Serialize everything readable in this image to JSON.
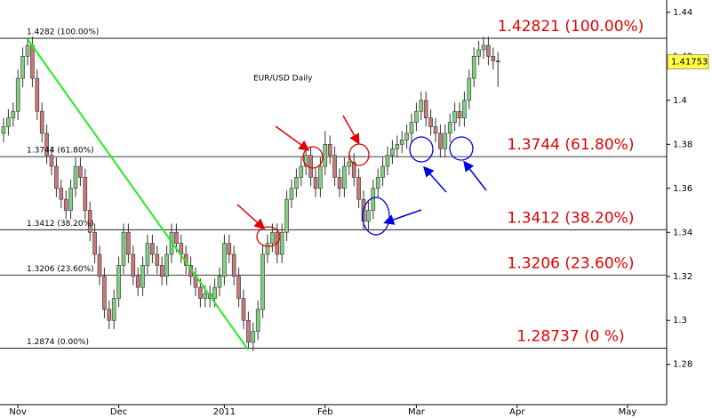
{
  "chart_data": {
    "type": "candlestick",
    "title": "EUR/USD Daily",
    "up_color": "#80d080",
    "down_color": "#c87878",
    "categories": [
      null,
      null,
      null,
      "Nov",
      null,
      null,
      null,
      null,
      null,
      null,
      null,
      null,
      null,
      null,
      null,
      null,
      null,
      null,
      null,
      null,
      null,
      null,
      null,
      null,
      "Dec",
      null,
      null,
      null,
      null,
      null,
      null,
      null,
      null,
      null,
      null,
      null,
      null,
      null,
      null,
      null,
      null,
      null,
      null,
      null,
      null,
      null,
      "2011",
      null,
      null,
      null,
      null,
      null,
      null,
      null,
      null,
      null,
      null,
      null,
      null,
      null,
      null,
      null,
      null,
      null,
      null,
      null,
      null,
      "Feb",
      null,
      null,
      null,
      null,
      null,
      null,
      null,
      null,
      null,
      null,
      null,
      null,
      null,
      null,
      null,
      null,
      null,
      null,
      "Mar",
      null,
      null,
      null,
      null,
      null,
      null,
      null,
      null,
      null,
      null,
      null,
      null,
      null,
      null,
      null,
      null,
      null,
      null,
      null,
      null,
      "Apr",
      null,
      null,
      null,
      null,
      null,
      null,
      null,
      null,
      null,
      null,
      null,
      null,
      null,
      null,
      null,
      null,
      null,
      null,
      null,
      null,
      null,
      null,
      "May"
    ],
    "candles": [
      [
        1.385,
        1.392,
        1.381,
        1.388
      ],
      [
        1.388,
        1.396,
        1.384,
        1.392
      ],
      [
        1.392,
        1.399,
        1.388,
        1.395
      ],
      [
        1.395,
        1.414,
        1.391,
        1.41
      ],
      [
        1.41,
        1.424,
        1.406,
        1.42
      ],
      [
        1.42,
        1.4282,
        1.416,
        1.425
      ],
      [
        1.425,
        1.429,
        1.406,
        1.41
      ],
      [
        1.41,
        1.414,
        1.391,
        1.395
      ],
      [
        1.395,
        1.399,
        1.381,
        1.385
      ],
      [
        1.385,
        1.389,
        1.371,
        1.375
      ],
      [
        1.375,
        1.379,
        1.366,
        1.37
      ],
      [
        1.37,
        1.374,
        1.356,
        1.36
      ],
      [
        1.36,
        1.364,
        1.351,
        1.355
      ],
      [
        1.355,
        1.359,
        1.346,
        1.35
      ],
      [
        1.35,
        1.364,
        1.346,
        1.36
      ],
      [
        1.36,
        1.374,
        1.356,
        1.37
      ],
      [
        1.37,
        1.374,
        1.361,
        1.365
      ],
      [
        1.365,
        1.369,
        1.346,
        1.35
      ],
      [
        1.35,
        1.354,
        1.336,
        1.34
      ],
      [
        1.34,
        1.344,
        1.326,
        1.33
      ],
      [
        1.33,
        1.334,
        1.316,
        1.32
      ],
      [
        1.32,
        1.324,
        1.301,
        1.305
      ],
      [
        1.305,
        1.309,
        1.296,
        1.3
      ],
      [
        1.3,
        1.314,
        1.296,
        1.31
      ],
      [
        1.31,
        1.329,
        1.306,
        1.325
      ],
      [
        1.325,
        1.344,
        1.321,
        1.34
      ],
      [
        1.34,
        1.344,
        1.326,
        1.33
      ],
      [
        1.33,
        1.334,
        1.316,
        1.32
      ],
      [
        1.32,
        1.324,
        1.311,
        1.315
      ],
      [
        1.315,
        1.329,
        1.311,
        1.325
      ],
      [
        1.325,
        1.339,
        1.321,
        1.335
      ],
      [
        1.335,
        1.339,
        1.326,
        1.33
      ],
      [
        1.33,
        1.334,
        1.321,
        1.325
      ],
      [
        1.325,
        1.329,
        1.316,
        1.32
      ],
      [
        1.32,
        1.334,
        1.316,
        1.33
      ],
      [
        1.33,
        1.344,
        1.326,
        1.34
      ],
      [
        1.34,
        1.344,
        1.331,
        1.335
      ],
      [
        1.335,
        1.339,
        1.326,
        1.33
      ],
      [
        1.33,
        1.334,
        1.321,
        1.325
      ],
      [
        1.325,
        1.329,
        1.316,
        1.32
      ],
      [
        1.32,
        1.324,
        1.311,
        1.315
      ],
      [
        1.315,
        1.319,
        1.306,
        1.31
      ],
      [
        1.31,
        1.316,
        1.306,
        1.312
      ],
      [
        1.312,
        1.316,
        1.306,
        1.31
      ],
      [
        1.31,
        1.319,
        1.306,
        1.315
      ],
      [
        1.315,
        1.324,
        1.311,
        1.32
      ],
      [
        1.32,
        1.339,
        1.316,
        1.335
      ],
      [
        1.335,
        1.339,
        1.326,
        1.33
      ],
      [
        1.33,
        1.334,
        1.316,
        1.32
      ],
      [
        1.32,
        1.324,
        1.306,
        1.31
      ],
      [
        1.31,
        1.314,
        1.296,
        1.3
      ],
      [
        1.3,
        1.304,
        1.2874,
        1.29
      ],
      [
        1.29,
        1.299,
        1.286,
        1.295
      ],
      [
        1.295,
        1.309,
        1.291,
        1.305
      ],
      [
        1.305,
        1.334,
        1.301,
        1.33
      ],
      [
        1.33,
        1.339,
        1.326,
        1.335
      ],
      [
        1.335,
        1.344,
        1.331,
        1.34
      ],
      [
        1.34,
        1.344,
        1.326,
        1.33
      ],
      [
        1.33,
        1.344,
        1.326,
        1.34
      ],
      [
        1.34,
        1.359,
        1.336,
        1.355
      ],
      [
        1.355,
        1.364,
        1.351,
        1.36
      ],
      [
        1.36,
        1.369,
        1.356,
        1.365
      ],
      [
        1.365,
        1.374,
        1.361,
        1.37
      ],
      [
        1.37,
        1.379,
        1.366,
        1.375
      ],
      [
        1.375,
        1.379,
        1.361,
        1.365
      ],
      [
        1.365,
        1.369,
        1.356,
        1.36
      ],
      [
        1.36,
        1.374,
        1.356,
        1.37
      ],
      [
        1.37,
        1.386,
        1.366,
        1.38
      ],
      [
        1.38,
        1.384,
        1.371,
        1.375
      ],
      [
        1.375,
        1.379,
        1.361,
        1.365
      ],
      [
        1.365,
        1.369,
        1.356,
        1.36
      ],
      [
        1.36,
        1.374,
        1.356,
        1.37
      ],
      [
        1.37,
        1.376,
        1.366,
        1.372
      ],
      [
        1.372,
        1.376,
        1.361,
        1.365
      ],
      [
        1.365,
        1.369,
        1.351,
        1.355
      ],
      [
        1.355,
        1.359,
        1.341,
        1.345
      ],
      [
        1.345,
        1.354,
        1.341,
        1.35
      ],
      [
        1.35,
        1.364,
        1.346,
        1.36
      ],
      [
        1.36,
        1.369,
        1.356,
        1.365
      ],
      [
        1.365,
        1.374,
        1.361,
        1.37
      ],
      [
        1.37,
        1.379,
        1.366,
        1.375
      ],
      [
        1.375,
        1.382,
        1.371,
        1.378
      ],
      [
        1.378,
        1.384,
        1.374,
        1.38
      ],
      [
        1.38,
        1.386,
        1.376,
        1.382
      ],
      [
        1.382,
        1.389,
        1.378,
        1.385
      ],
      [
        1.385,
        1.394,
        1.381,
        1.39
      ],
      [
        1.39,
        1.399,
        1.386,
        1.395
      ],
      [
        1.395,
        1.404,
        1.391,
        1.4
      ],
      [
        1.4,
        1.404,
        1.388,
        1.392
      ],
      [
        1.392,
        1.396,
        1.384,
        1.388
      ],
      [
        1.388,
        1.392,
        1.381,
        1.385
      ],
      [
        1.385,
        1.389,
        1.374,
        1.378
      ],
      [
        1.378,
        1.389,
        1.374,
        1.385
      ],
      [
        1.385,
        1.394,
        1.381,
        1.39
      ],
      [
        1.39,
        1.399,
        1.386,
        1.395
      ],
      [
        1.395,
        1.399,
        1.388,
        1.392
      ],
      [
        1.392,
        1.404,
        1.388,
        1.4
      ],
      [
        1.4,
        1.414,
        1.396,
        1.41
      ],
      [
        1.41,
        1.424,
        1.406,
        1.42
      ],
      [
        1.42,
        1.427,
        1.416,
        1.423
      ],
      [
        1.423,
        1.429,
        1.419,
        1.425
      ],
      [
        1.425,
        1.429,
        1.416,
        1.42
      ],
      [
        1.42,
        1.424,
        1.414,
        1.418
      ],
      [
        1.418,
        1.422,
        1.406,
        1.41753
      ],
      null,
      null,
      null,
      null,
      null,
      null,
      null,
      null,
      null,
      null,
      null,
      null,
      null,
      null,
      null,
      null,
      null,
      null,
      null,
      null,
      null,
      null,
      null,
      null,
      null,
      null,
      null
    ],
    "ylim": [
      1.2617,
      1.4456
    ],
    "yticks": [
      1.28,
      1.3,
      1.32,
      1.34,
      1.36,
      1.38,
      1.4,
      1.42,
      1.44
    ],
    "fib_levels": [
      {
        "value": 1.4282,
        "label": "1.4282 (100.00%)",
        "annotation": "1.42821 (100.00%)"
      },
      {
        "value": 1.3744,
        "label": "1.3744 (61.80%)",
        "annotation": "1.3744 (61.80%)"
      },
      {
        "value": 1.3412,
        "label": "1.3412 (38.20%)",
        "annotation": "1.3412 (38.20%)"
      },
      {
        "value": 1.3206,
        "label": "1.3206 (23.60%)",
        "annotation": "1.3206 (23.60%)"
      },
      {
        "value": 1.2874,
        "label": "1.2874 (0.00%)",
        "annotation": "1.28737 (0 %)"
      }
    ]
  }
}
